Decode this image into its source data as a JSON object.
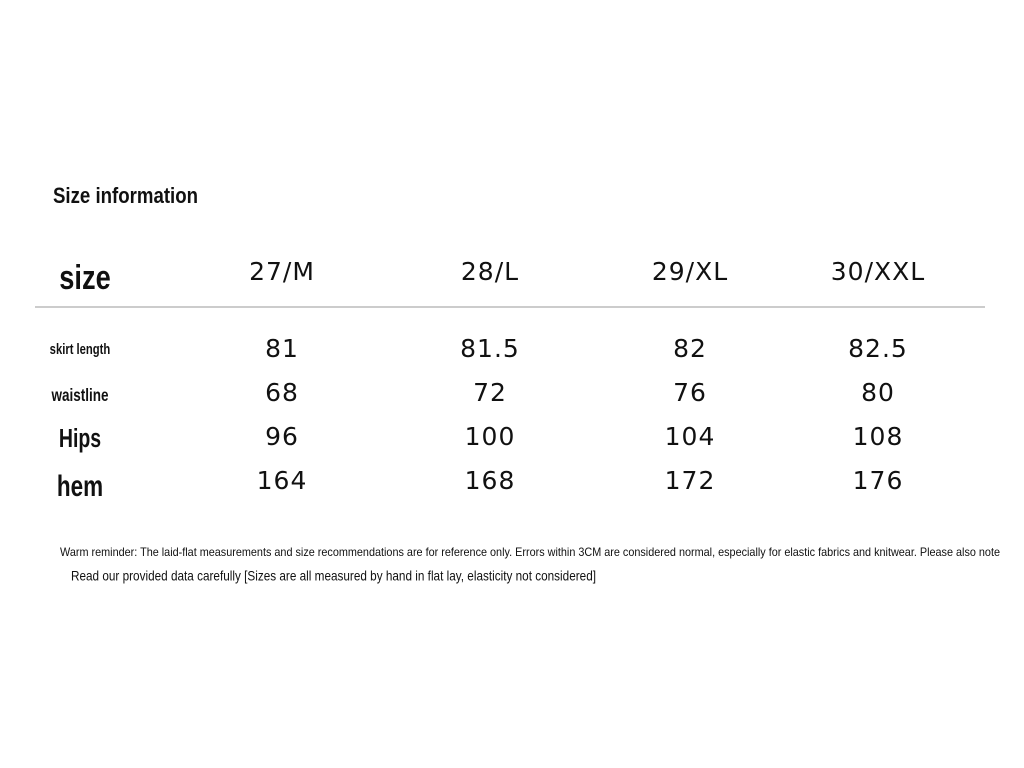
{
  "title": "Size information",
  "table": {
    "header": [
      "size",
      "27/M",
      "28/L",
      "29/XL",
      "30/XXL"
    ],
    "rows": [
      [
        "skirt length",
        "81",
        "81.5",
        "82",
        "82.5"
      ],
      [
        "waistline",
        "68",
        "72",
        "76",
        "80"
      ],
      [
        "Hips",
        "96",
        "100",
        "104",
        "108"
      ],
      [
        "hem",
        "164",
        "168",
        "172",
        "176"
      ]
    ]
  },
  "notes": [
    "Warm reminder: The laid-flat measurements and size recommendations are for reference only. Errors within 3CM are considered normal, especially for elastic fabrics and knitwear. Please also note",
    "Read our provided data carefully [Sizes are all measured by hand in flat lay, elasticity not considered]"
  ]
}
